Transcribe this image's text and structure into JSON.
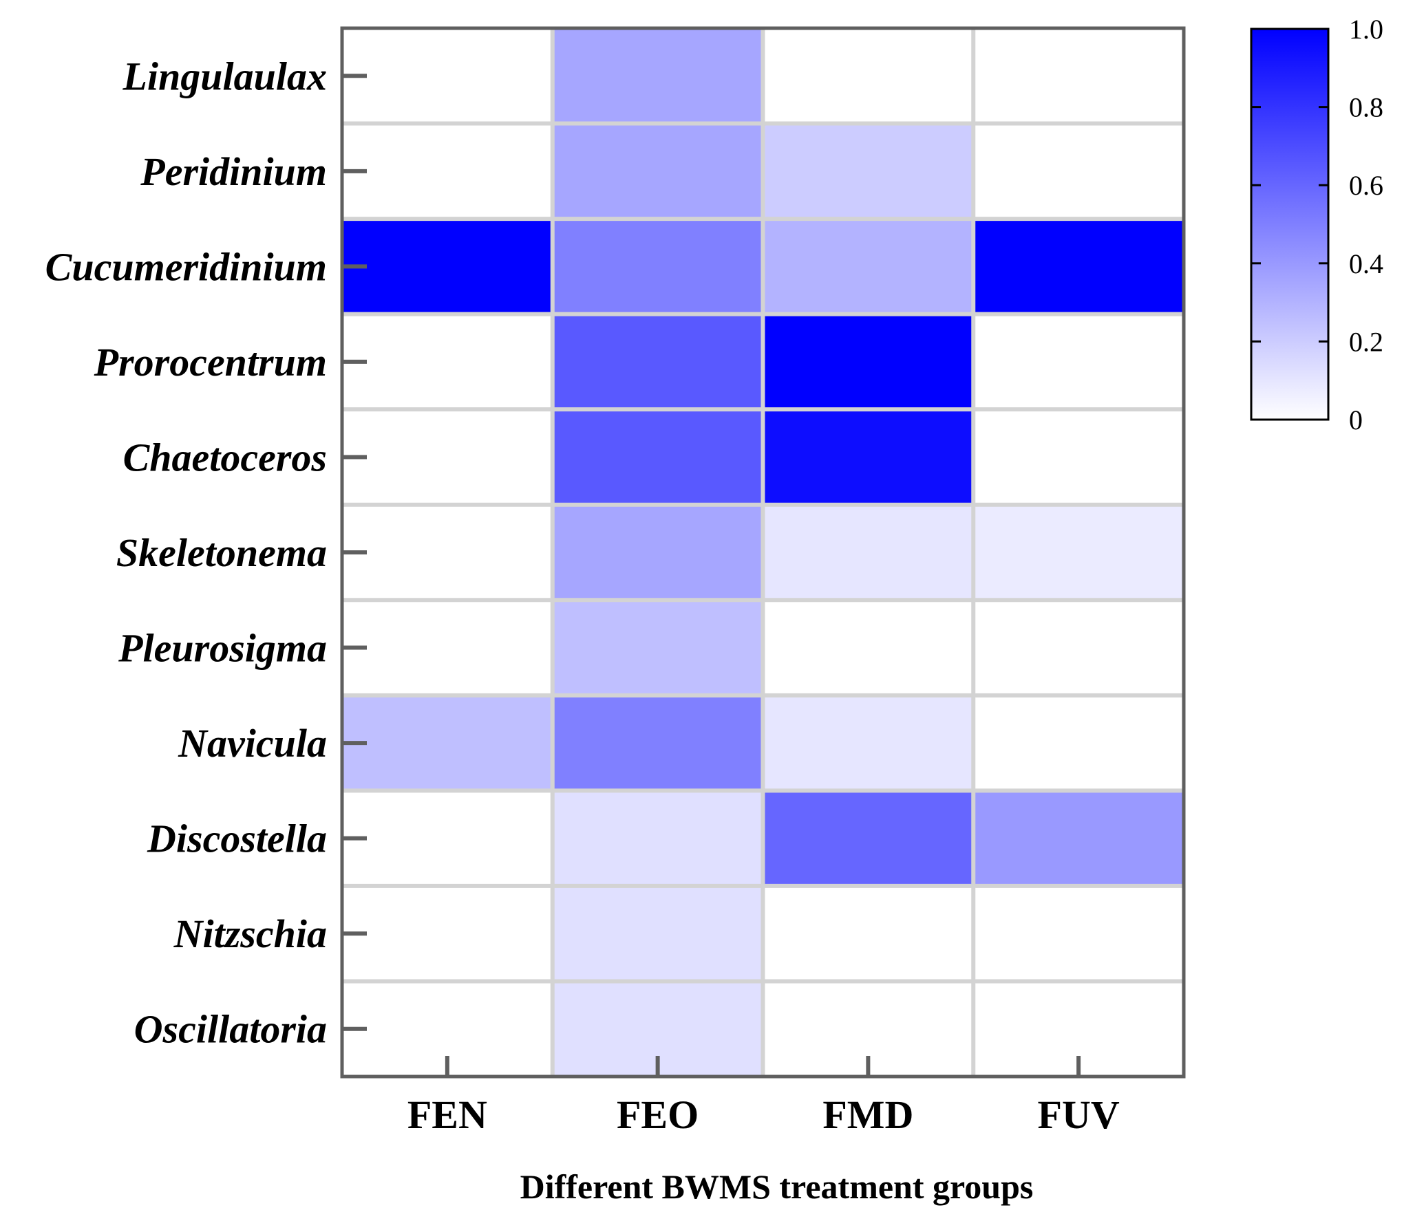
{
  "chart_data": {
    "type": "heatmap",
    "xlabel": "Different BWMS treatment groups",
    "columns": [
      "FEN",
      "FEO",
      "FMD",
      "FUV"
    ],
    "rows": [
      "Lingulaulax",
      "Peridinium",
      "Cucumeridinium",
      "Prorocentrum",
      "Chaetoceros",
      "Skeletonema",
      "Pleurosigma",
      "Navicula",
      "Discostella",
      "Nitzschia",
      "Oscillatoria"
    ],
    "values": [
      [
        0.0,
        0.35,
        0.0,
        0.0
      ],
      [
        0.0,
        0.35,
        0.2,
        0.0
      ],
      [
        1.0,
        0.5,
        0.3,
        1.0
      ],
      [
        0.0,
        0.65,
        1.0,
        0.0
      ],
      [
        0.0,
        0.65,
        0.95,
        0.0
      ],
      [
        0.0,
        0.35,
        0.1,
        0.08
      ],
      [
        0.0,
        0.25,
        0.0,
        0.0
      ],
      [
        0.25,
        0.5,
        0.1,
        0.0
      ],
      [
        0.0,
        0.12,
        0.6,
        0.4
      ],
      [
        0.0,
        0.12,
        0.0,
        0.0
      ],
      [
        0.0,
        0.12,
        0.0,
        0.0
      ]
    ],
    "colorbar": {
      "range": [
        0,
        1
      ],
      "ticks": [
        "0",
        "0.2",
        "0.4",
        "0.6",
        "0.8",
        "1.0"
      ],
      "color_low": "#ffffff",
      "color_high": "#0000ff"
    },
    "grid_color": "#d3d3d3",
    "frame_color": "#5f5f5f"
  }
}
